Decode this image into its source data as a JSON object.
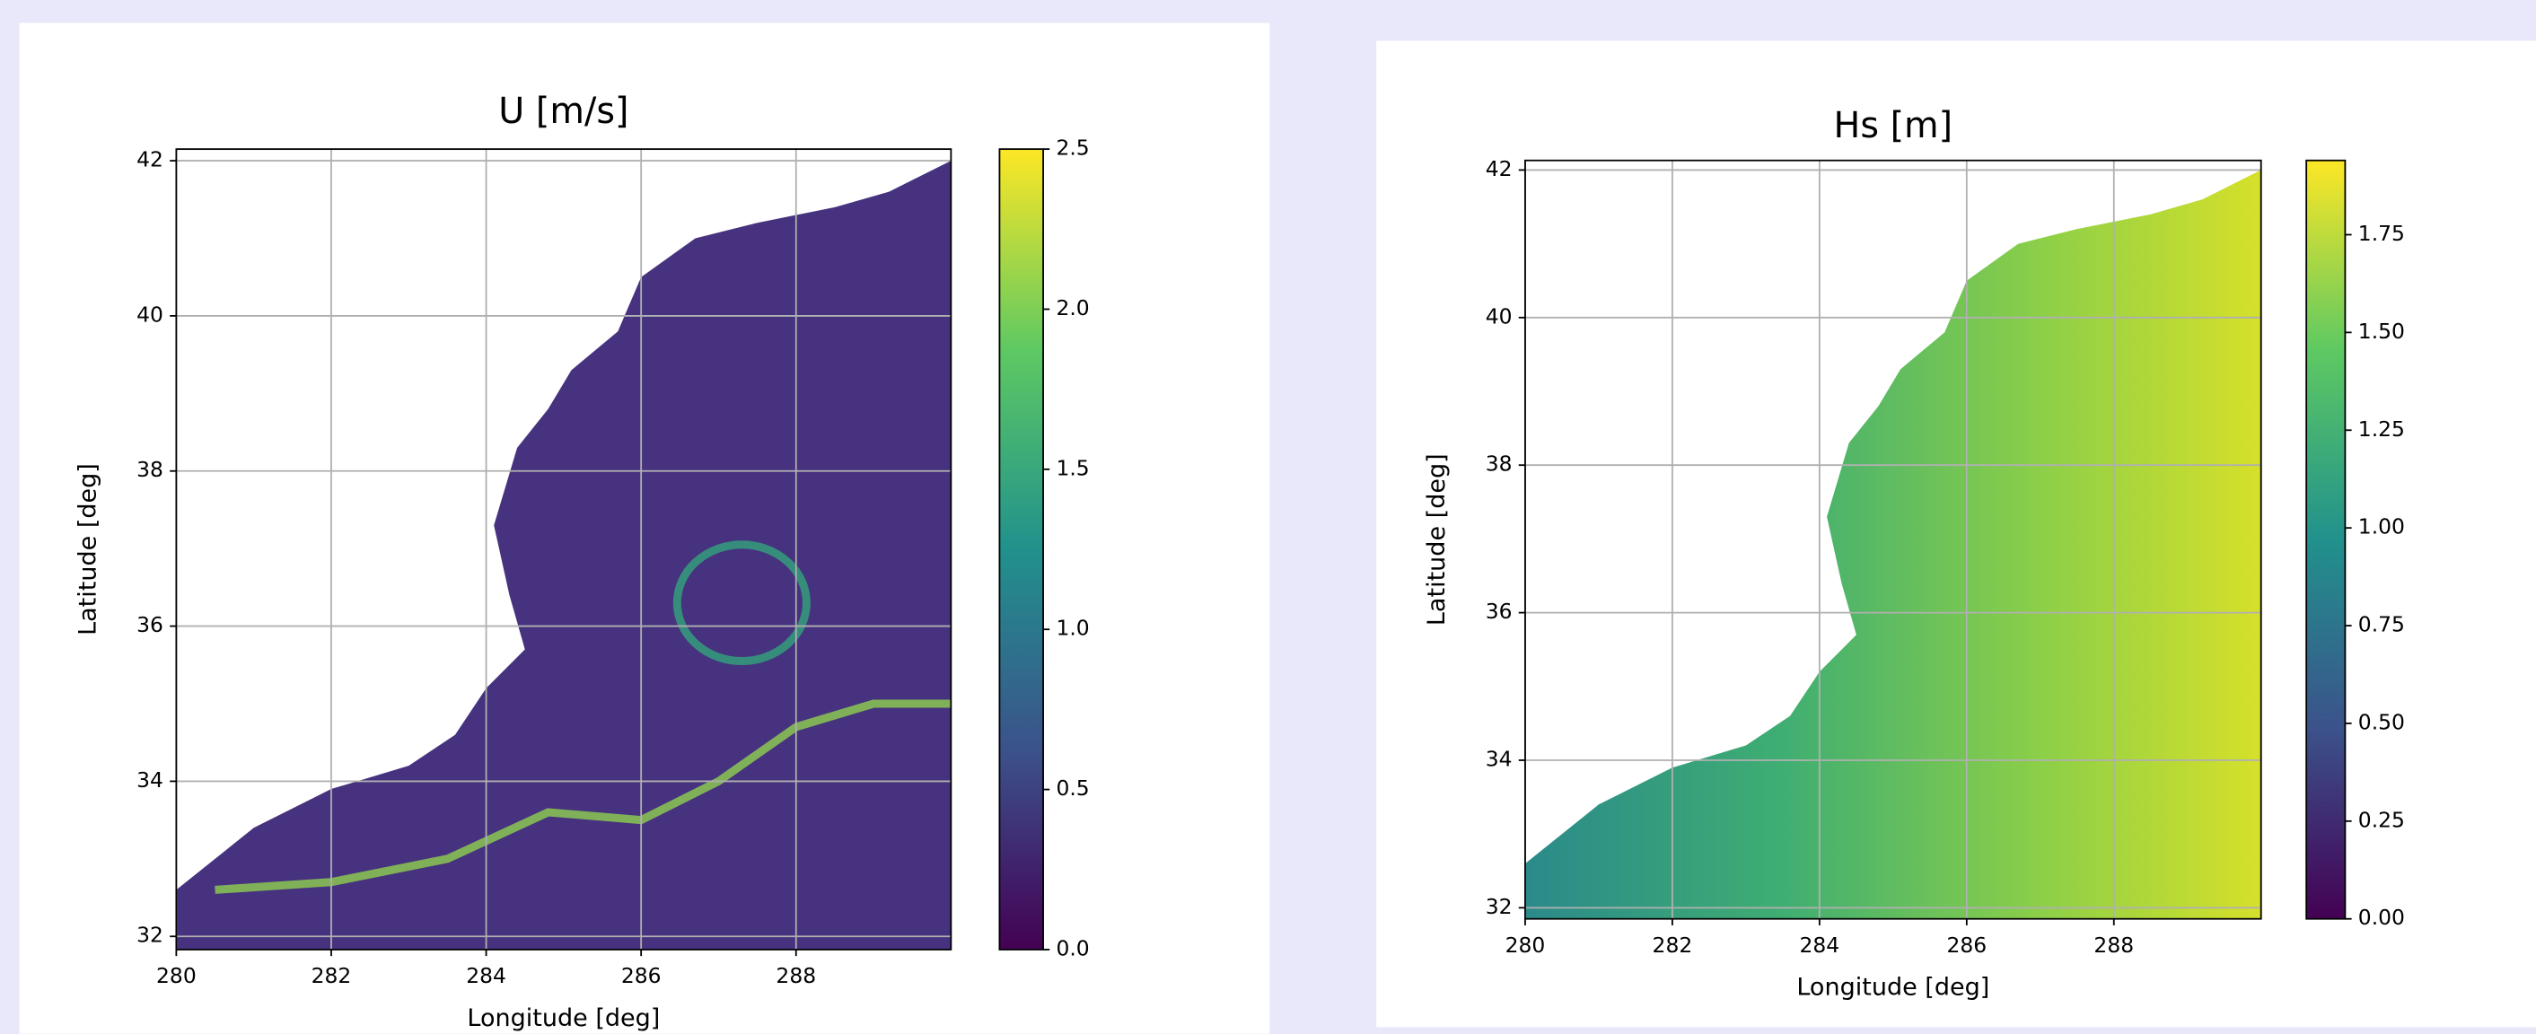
{
  "chart_data": [
    {
      "type": "map",
      "title": "U  [m/s]",
      "xlabel": "Longitude [deg]",
      "ylabel": "Latitude [deg]",
      "xlim": [
        280,
        290
      ],
      "ylim": [
        31.83,
        42.15
      ],
      "xticks": [
        280,
        282,
        284,
        286,
        288
      ],
      "yticks": [
        32,
        34,
        36,
        38,
        40,
        42
      ],
      "grid": true,
      "colorbar": {
        "lim": [
          0,
          2.5
        ],
        "ticks": [
          {
            "value": 0,
            "label": "0.0"
          },
          0.5,
          {
            "value": 1,
            "label": "1.0"
          },
          1.5,
          {
            "value": 2,
            "label": "2.0"
          },
          2.5
        ]
      }
    },
    {
      "type": "map",
      "title": "Hs [m]",
      "xlabel": "Longitude [deg]",
      "ylabel": "Latitude [deg]",
      "xlim": [
        280,
        290
      ],
      "ylim": [
        31.85,
        42.13
      ],
      "xticks": [
        280,
        282,
        284,
        286,
        288
      ],
      "yticks": [
        32,
        34,
        36,
        38,
        40,
        42
      ],
      "grid": true,
      "colorbar": {
        "lim": [
          0,
          1.94
        ],
        "ticks": [
          {
            "value": 0,
            "label": "0.00"
          },
          {
            "value": 0.25,
            "label": "0.25"
          },
          {
            "value": 0.5,
            "label": "0.50"
          },
          {
            "value": 0.75,
            "label": "0.75"
          },
          {
            "value": 1,
            "label": "1.00"
          },
          {
            "value": 1.25,
            "label": "1.25"
          },
          {
            "value": 1.5,
            "label": "1.50"
          },
          {
            "value": 1.75,
            "label": "1.75"
          }
        ]
      }
    }
  ]
}
